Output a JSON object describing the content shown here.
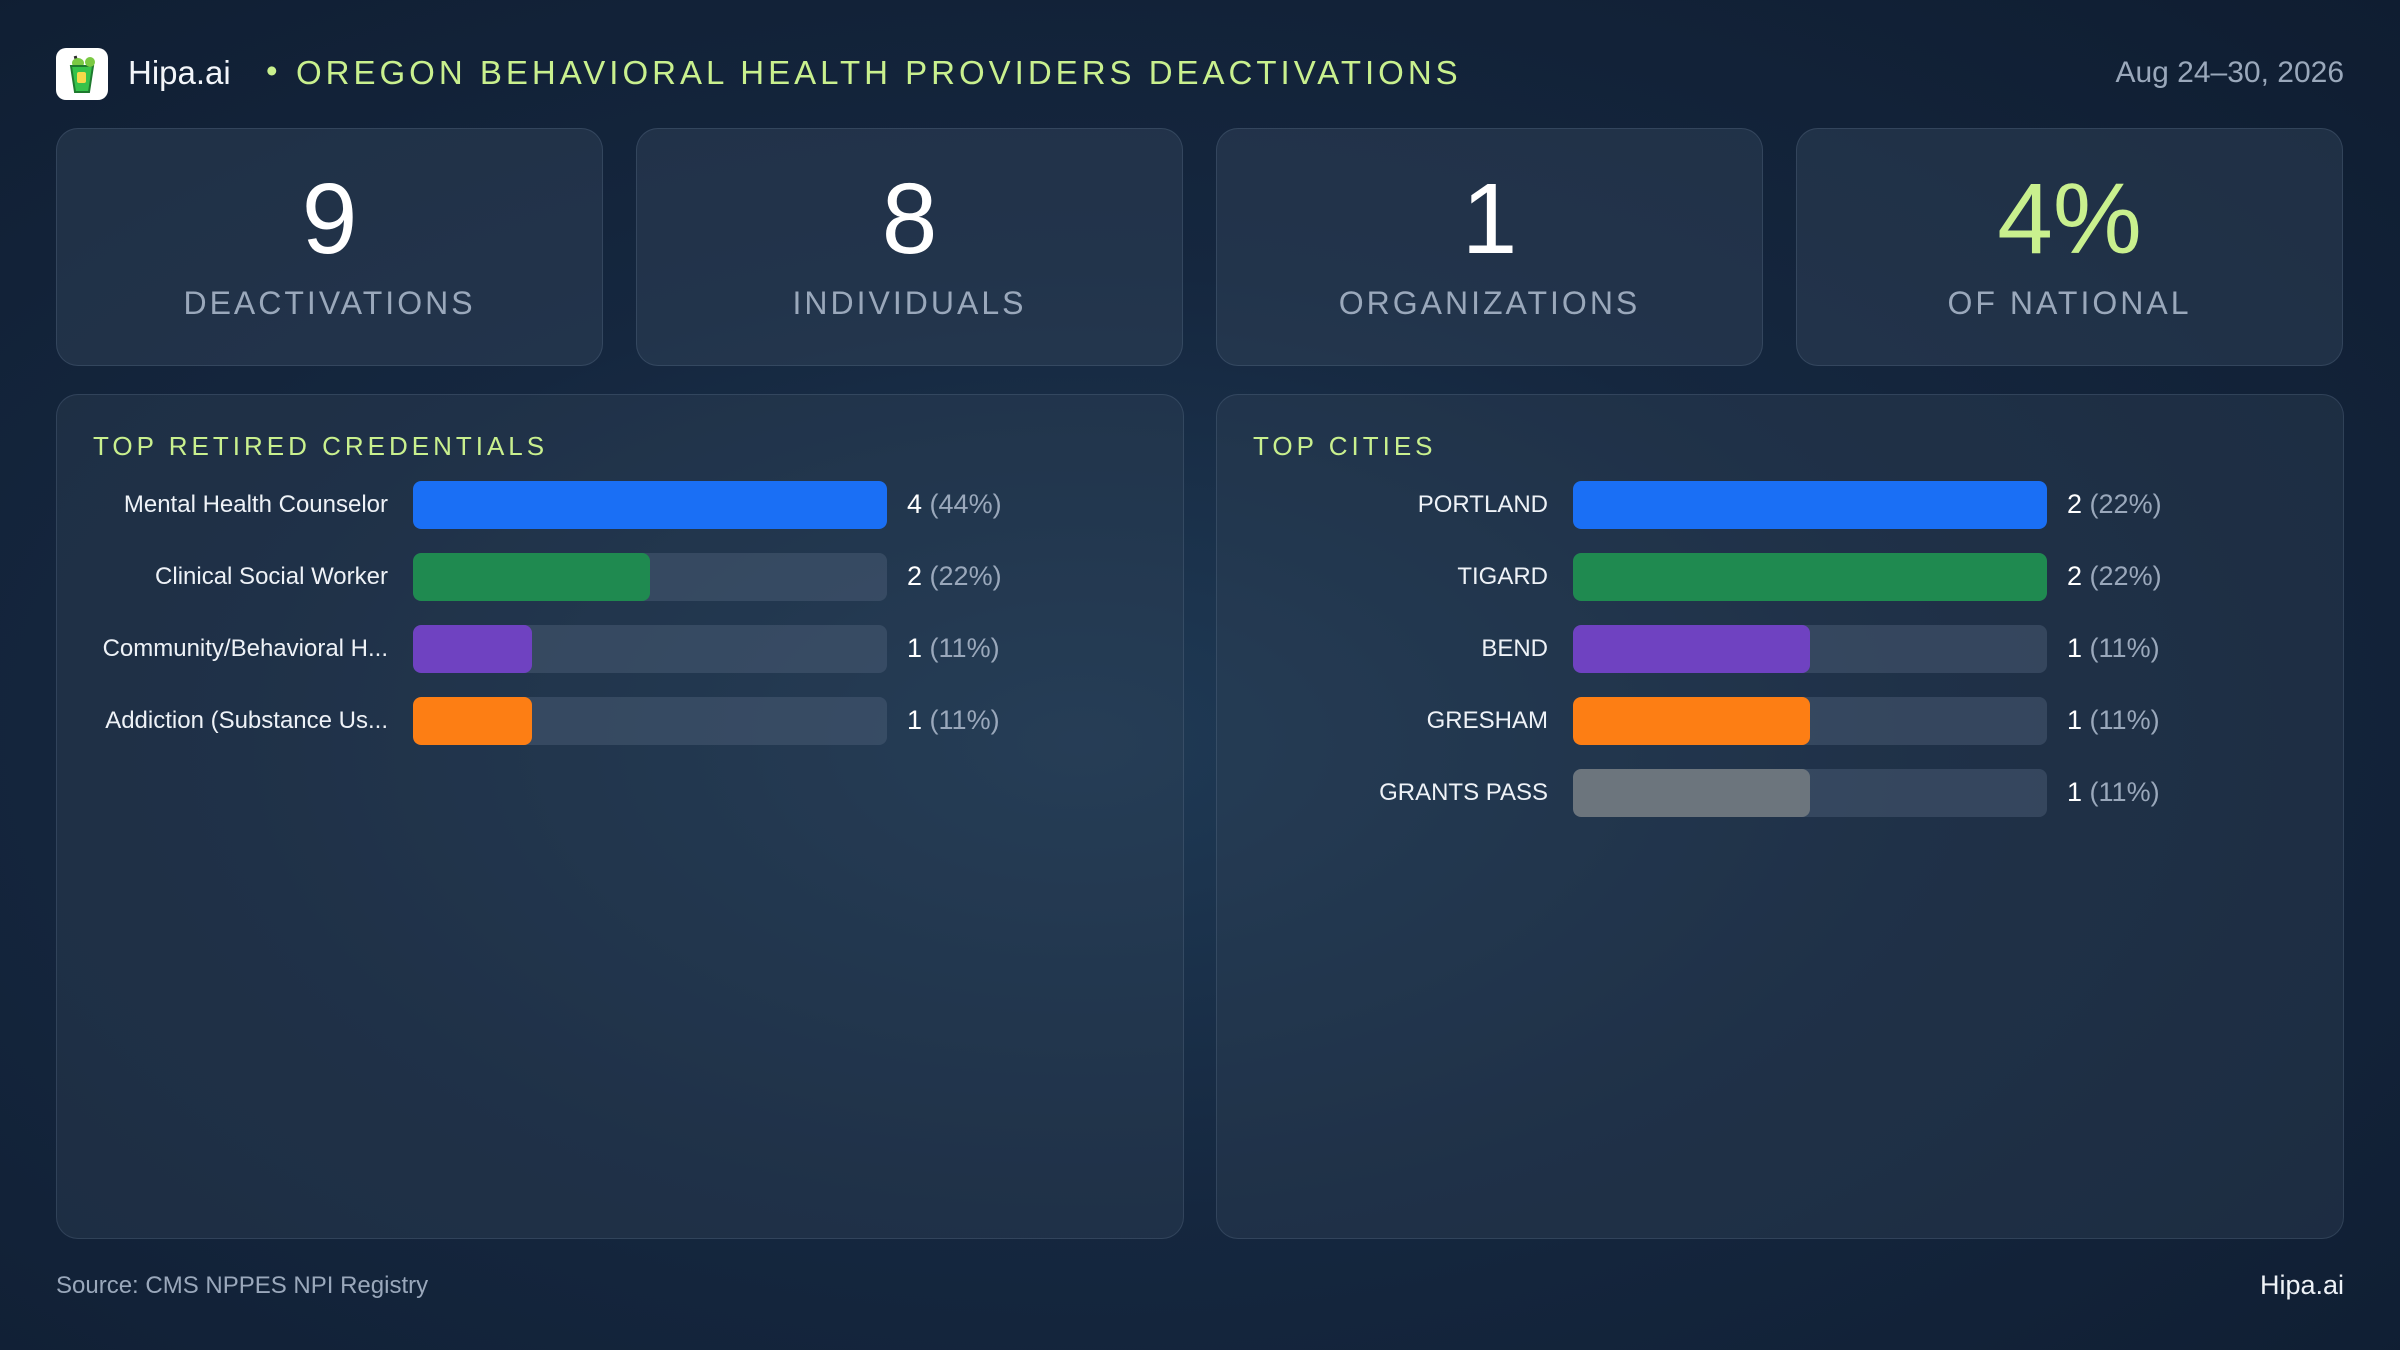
{
  "header": {
    "brand": "Hipa.ai",
    "separator": "•",
    "title": "OREGON BEHAVIORAL HEALTH PROVIDERS DEACTIVATIONS",
    "date_range": "Aug 24–30, 2026"
  },
  "kpis": [
    {
      "value": "9",
      "label": "DEACTIVATIONS"
    },
    {
      "value": "8",
      "label": "INDIVIDUALS"
    },
    {
      "value": "1",
      "label": "ORGANIZATIONS"
    },
    {
      "value": "4%",
      "label": "OF NATIONAL"
    }
  ],
  "colors": {
    "accent": "#c9f08e",
    "blue": "#1a6ff5",
    "green": "#1f8a50",
    "purple": "#6f42c1",
    "orange": "#fd7e14",
    "gray": "#6c757d"
  },
  "chart_data": [
    {
      "type": "bar",
      "orientation": "horizontal",
      "title": "TOP RETIRED CREDENTIALS",
      "categories": [
        "Mental Health Counselor",
        "Clinical Social Worker",
        "Community/Behavioral H...",
        "Addiction (Substance Us..."
      ],
      "values": [
        4,
        2,
        1,
        1
      ],
      "percent_labels": [
        "(44%)",
        "(22%)",
        "(11%)",
        "(11%)"
      ],
      "bar_colors": [
        "#1a6ff5",
        "#1f8a50",
        "#6f42c1",
        "#fd7e14"
      ],
      "xlim": [
        0,
        4
      ]
    },
    {
      "type": "bar",
      "orientation": "horizontal",
      "title": "TOP CITIES",
      "categories": [
        "PORTLAND",
        "TIGARD",
        "BEND",
        "GRESHAM",
        "GRANTS PASS"
      ],
      "values": [
        2,
        2,
        1,
        1,
        1
      ],
      "percent_labels": [
        "(22%)",
        "(22%)",
        "(11%)",
        "(11%)",
        "(11%)"
      ],
      "bar_colors": [
        "#1a6ff5",
        "#1f8a50",
        "#6f42c1",
        "#fd7e14",
        "#6c757d"
      ],
      "xlim": [
        0,
        2
      ]
    }
  ],
  "footer": {
    "source": "Source: CMS NPPES NPI Registry",
    "brand": "Hipa.ai"
  }
}
